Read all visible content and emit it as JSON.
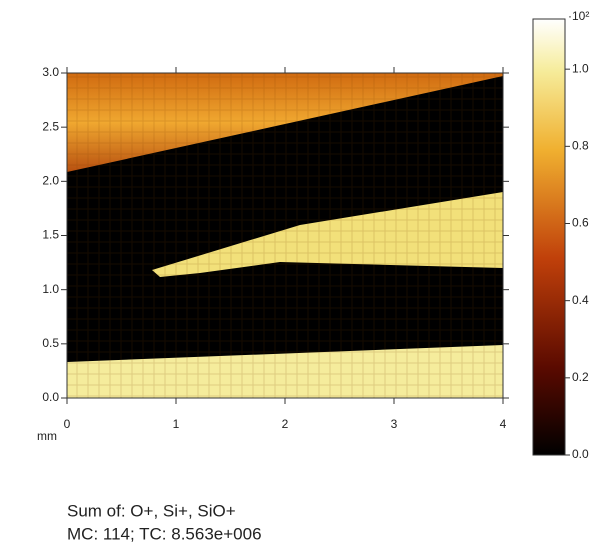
{
  "chart_data": {
    "type": "image-map",
    "xlim": [
      0,
      4
    ],
    "ylim": [
      0,
      3
    ],
    "xticks": [
      0,
      1,
      2,
      3,
      4
    ],
    "yticks": [
      {
        "value": 0,
        "label": "0.0"
      },
      0.5,
      {
        "value": 1,
        "label": "1.0"
      },
      1.5,
      {
        "value": 2,
        "label": "2.0"
      },
      2.5,
      {
        "value": 3,
        "label": "3.0"
      }
    ],
    "x_unit": "mm",
    "colorbar": {
      "lim": [
        0,
        1.13
      ],
      "scale_label": "·10²",
      "ticks": [
        {
          "value": 0,
          "label": "0.0"
        },
        0.2,
        0.4,
        0.6,
        0.8,
        {
          "value": 1,
          "label": "1.0"
        }
      ]
    },
    "caption": [
      "Sum of: O+, Si+, SiO+",
      "MC:   114; TC: 8.563e+006"
    ]
  }
}
